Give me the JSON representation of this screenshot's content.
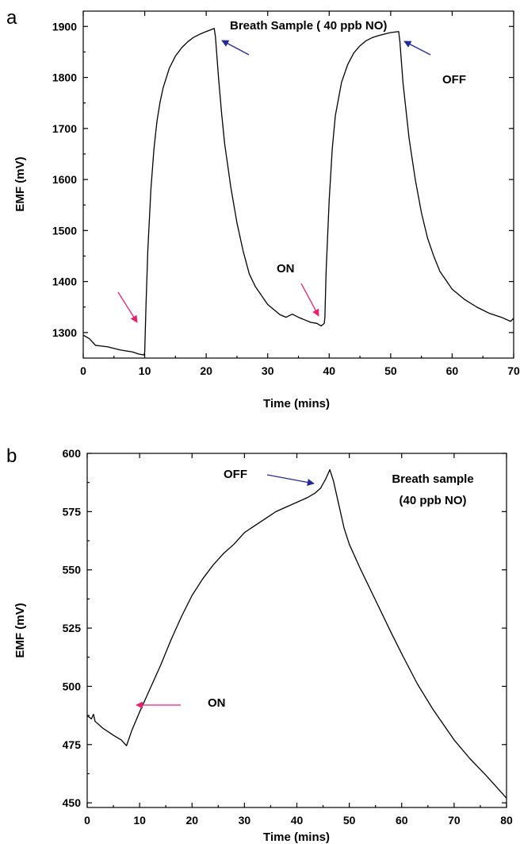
{
  "panels": [
    {
      "letter": "a",
      "ylabel": "EMF (mV)",
      "xlabel": "Time (mins)",
      "title": "Breath Sample ( 40 ppb NO)",
      "annotations": {
        "on": "ON",
        "off": "OFF"
      }
    },
    {
      "letter": "b",
      "ylabel": "EMF (mV)",
      "xlabel": "Time (mins)",
      "title_line1": "Breath sample",
      "title_line2": "(40 ppb NO)",
      "annotations": {
        "on": "ON",
        "off": "OFF"
      }
    }
  ],
  "colors": {
    "on_arrow": "#e8206e",
    "off_arrow": "#24299a",
    "line": "#000000"
  },
  "chart_data": [
    {
      "type": "line",
      "xlabel": "Time (mins)",
      "ylabel": "EMF (mV)",
      "xlim": [
        0,
        70
      ],
      "ylim": [
        1250,
        1930
      ],
      "xticks": [
        0,
        10,
        20,
        30,
        40,
        50,
        60,
        70
      ],
      "yticks": [
        1300,
        1400,
        1500,
        1600,
        1700,
        1800,
        1900
      ],
      "series": [
        {
          "x": [
            0,
            1,
            2,
            4,
            6,
            8,
            9,
            9.9,
            10.0,
            10.2,
            10.5,
            11,
            11.5,
            12,
            12.5,
            13,
            14,
            15,
            16,
            17,
            18,
            19,
            20,
            21.3,
            21.5,
            22,
            22.5,
            23,
            24,
            25,
            26,
            27,
            28,
            30,
            32,
            33,
            34,
            35,
            36,
            37,
            38,
            38.7,
            39.2,
            39.3,
            39.5,
            40,
            40.5,
            41,
            42,
            43,
            44,
            45,
            46,
            47,
            48,
            49,
            50,
            51.3,
            51.5,
            52,
            53,
            54,
            55,
            56,
            57,
            58,
            60,
            62,
            64,
            66,
            68,
            69.5,
            70
          ],
          "y": [
            1295,
            1288,
            1275,
            1272,
            1266,
            1262,
            1258,
            1256,
            1262,
            1350,
            1460,
            1580,
            1660,
            1715,
            1752,
            1780,
            1818,
            1842,
            1858,
            1870,
            1879,
            1885,
            1890,
            1896,
            1880,
            1800,
            1730,
            1670,
            1585,
            1515,
            1460,
            1415,
            1390,
            1355,
            1335,
            1330,
            1336,
            1330,
            1325,
            1320,
            1318,
            1313,
            1318,
            1330,
            1420,
            1560,
            1660,
            1725,
            1790,
            1825,
            1848,
            1862,
            1872,
            1878,
            1882,
            1885,
            1888,
            1890,
            1870,
            1790,
            1680,
            1600,
            1535,
            1485,
            1450,
            1420,
            1385,
            1365,
            1350,
            1338,
            1330,
            1322,
            1328
          ]
        }
      ]
    },
    {
      "type": "line",
      "xlabel": "Time (mins)",
      "ylabel": "EMF (mV)",
      "xlim": [
        0,
        80
      ],
      "ylim": [
        448,
        600
      ],
      "xticks": [
        0,
        10,
        20,
        30,
        40,
        50,
        60,
        70,
        80
      ],
      "yticks": [
        450,
        475,
        500,
        525,
        550,
        575,
        600
      ],
      "series": [
        {
          "x": [
            0,
            0.8,
            1.2,
            1.5,
            3,
            5,
            6.5,
            7.5,
            8.5,
            10,
            12,
            14,
            16,
            18,
            20,
            22,
            24,
            26,
            28,
            30,
            32,
            34,
            36,
            38,
            40,
            42,
            43.5,
            44.5,
            45.5,
            46.3,
            47,
            48,
            49,
            50,
            52,
            55,
            58,
            60,
            63,
            66,
            70,
            73,
            76,
            78,
            80
          ],
          "y": [
            487.5,
            486,
            488,
            485,
            482,
            479,
            477,
            474.5,
            481,
            489,
            499,
            509,
            520,
            530,
            539,
            546,
            552,
            557,
            561,
            566,
            569,
            572,
            575,
            577,
            579,
            581,
            583,
            585,
            589,
            593,
            588,
            578,
            568,
            561,
            551,
            537,
            523,
            514,
            501,
            490,
            477,
            469,
            462,
            457,
            452
          ]
        }
      ]
    }
  ]
}
